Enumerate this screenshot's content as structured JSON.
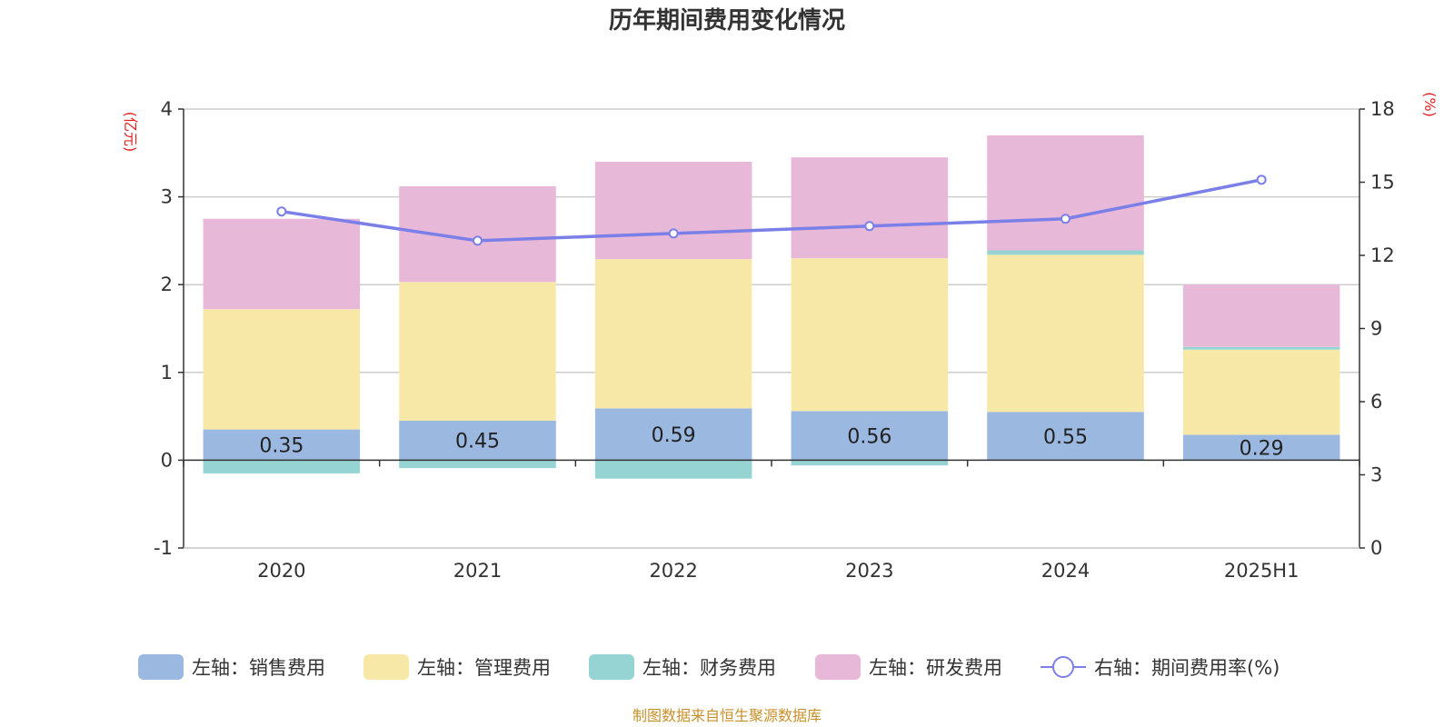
{
  "chart_data": {
    "type": "bar",
    "title": "历年期间费用变化情况",
    "categories": [
      "2020",
      "2021",
      "2022",
      "2023",
      "2024",
      "2025H1"
    ],
    "y_left": {
      "unit_label": "(亿元)",
      "min": -1,
      "max": 4,
      "ticks": [
        "-1",
        "0",
        "1",
        "2",
        "3",
        "4"
      ]
    },
    "y_right": {
      "unit_label": "(%)",
      "min": 0,
      "max": 18,
      "ticks": [
        "0",
        "3",
        "6",
        "9",
        "12",
        "15",
        "18"
      ]
    },
    "stacked": true,
    "series": [
      {
        "name": "左轴：销售费用",
        "type": "bar",
        "axis": "left",
        "color": "#9bb8e1",
        "values": [
          0.35,
          0.45,
          0.59,
          0.56,
          0.55,
          0.29
        ],
        "labels": [
          "0.35",
          "0.45",
          "0.59",
          "0.56",
          "0.55",
          "0.29"
        ]
      },
      {
        "name": "左轴：管理费用",
        "type": "bar",
        "axis": "left",
        "color": "#f8e8a8",
        "values": [
          1.37,
          1.58,
          1.7,
          1.74,
          1.79,
          0.97
        ]
      },
      {
        "name": "左轴：财务费用",
        "type": "bar",
        "axis": "left",
        "color": "#96d4d4",
        "values": [
          -0.15,
          -0.09,
          -0.21,
          -0.06,
          0.05,
          0.03
        ]
      },
      {
        "name": "左轴：研发费用",
        "type": "bar",
        "axis": "left",
        "color": "#e8b8d8",
        "values": [
          1.03,
          1.09,
          1.11,
          1.15,
          1.31,
          0.71
        ]
      },
      {
        "name": "右轴：期间费用率(%)",
        "type": "line",
        "axis": "right",
        "color": "#7b7fe8",
        "values": [
          13.8,
          12.6,
          12.9,
          13.2,
          13.5,
          15.1
        ]
      }
    ],
    "grid": true,
    "legend_position": "bottom"
  },
  "source": "制图数据来自恒生聚源数据库"
}
